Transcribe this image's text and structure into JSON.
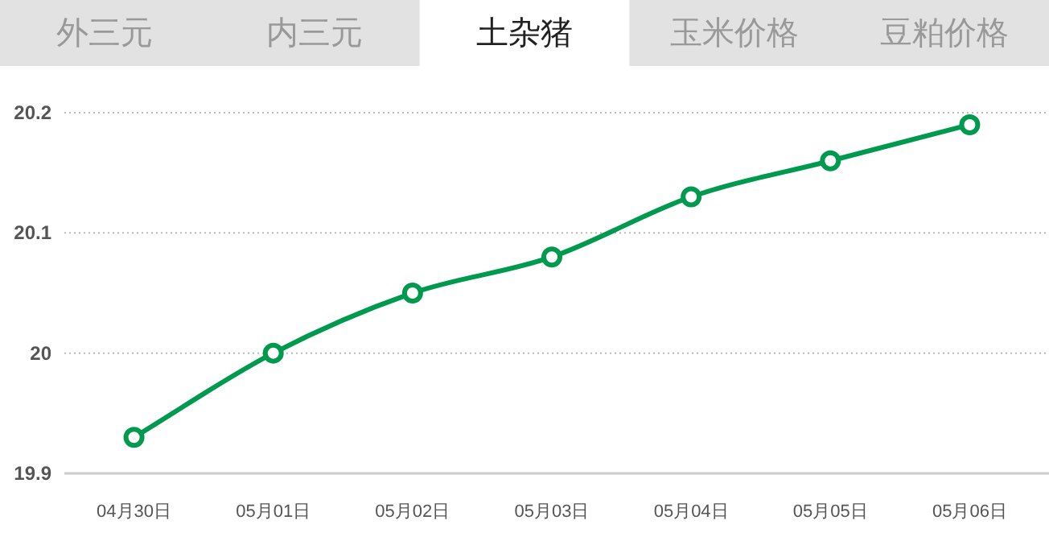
{
  "chart_data": {
    "type": "line",
    "title": "土杂猪",
    "annotations": [
      "外三元",
      "内三元",
      "玉米价格",
      "豆粕价格"
    ],
    "categories": [
      "04月30日",
      "05月01日",
      "05月02日",
      "05月03日",
      "05月04日",
      "05月05日",
      "05月06日"
    ],
    "series": [
      {
        "color": "#009a4e",
        "values": [
          19.93,
          20.0,
          20.05,
          20.08,
          20.13,
          20.16,
          20.19
        ]
      }
    ],
    "ylim": [
      19.9,
      20.2
    ],
    "yticks": [
      19.9,
      20,
      20.1,
      20.2
    ],
    "grid": "y",
    "marker": "circle",
    "line_style": "solid"
  }
}
